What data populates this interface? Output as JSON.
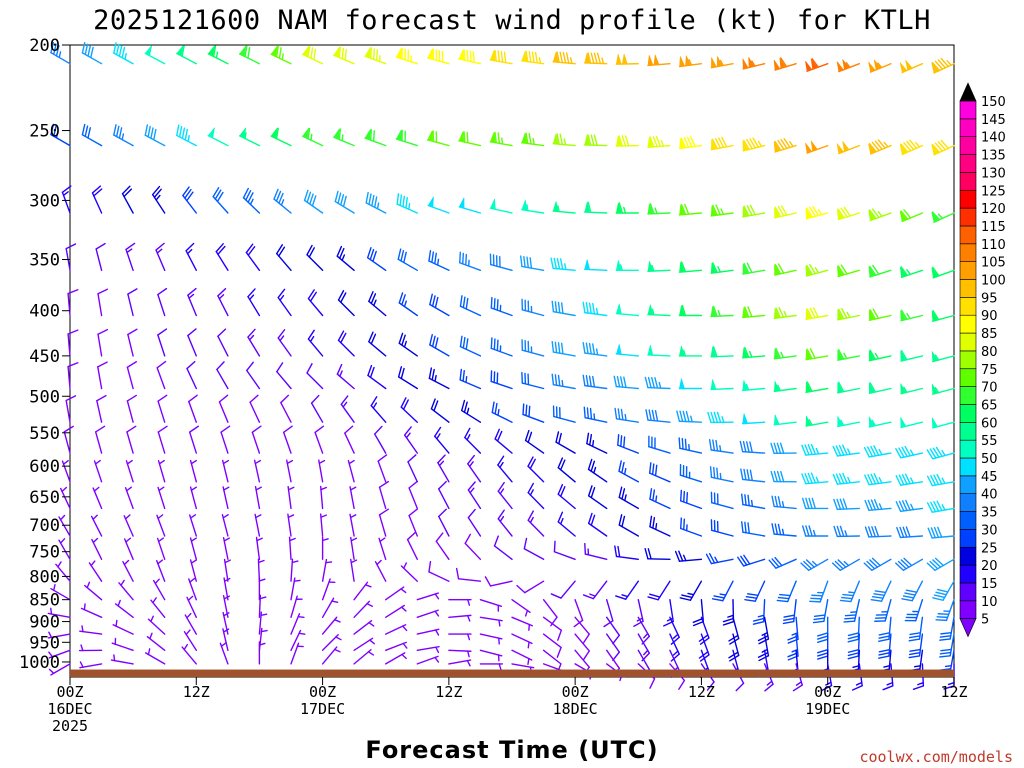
{
  "chart_data": {
    "type": "wind-barb-time-height",
    "title": "2025121600 NAM forecast wind profile (kt) for KTLH",
    "xlabel": "Forecast Time (UTC)",
    "credit": "coolwx.com/models",
    "y_axis": {
      "units": "hPa",
      "inverted": true,
      "range": [
        1040,
        200
      ],
      "ticks": [
        "200",
        "250",
        "300",
        "350",
        "400",
        "450",
        "500",
        "550",
        "600",
        "650",
        "700",
        "750",
        "800",
        "850",
        "900",
        "950",
        "1000"
      ]
    },
    "x_axis": {
      "units": "forecast hour",
      "range": [
        0,
        84
      ],
      "ticks": [
        {
          "hour": 0,
          "line1": "00Z",
          "line2": "16DEC",
          "line3": "2025"
        },
        {
          "hour": 12,
          "line1": "12Z",
          "line2": "",
          "line3": ""
        },
        {
          "hour": 24,
          "line1": "00Z",
          "line2": "17DEC",
          "line3": ""
        },
        {
          "hour": 36,
          "line1": "12Z",
          "line2": "",
          "line3": ""
        },
        {
          "hour": 48,
          "line1": "00Z",
          "line2": "18DEC",
          "line3": ""
        },
        {
          "hour": 60,
          "line1": "12Z",
          "line2": "",
          "line3": ""
        },
        {
          "hour": 72,
          "line1": "00Z",
          "line2": "19DEC",
          "line3": ""
        },
        {
          "hour": 84,
          "line1": "12Z",
          "line2": "",
          "line3": ""
        }
      ]
    },
    "colorbar": {
      "units": "kt",
      "levels": [
        5,
        10,
        15,
        20,
        25,
        30,
        35,
        40,
        45,
        50,
        55,
        60,
        65,
        70,
        75,
        80,
        85,
        90,
        95,
        100,
        105,
        110,
        115,
        120,
        125,
        130,
        135,
        140,
        145,
        150
      ],
      "colors": [
        "#8000ff",
        "#6000ff",
        "#2000ff",
        "#0000e0",
        "#0040ff",
        "#0060ff",
        "#1080ff",
        "#10a0ff",
        "#00e0ff",
        "#00ffc0",
        "#00ff90",
        "#00ff60",
        "#30ff30",
        "#60ff00",
        "#a0ff00",
        "#e0ff00",
        "#ffff00",
        "#ffe000",
        "#ffc000",
        "#ffa000",
        "#ff8000",
        "#ff6000",
        "#ff3000",
        "#ff0000",
        "#ff0060",
        "#ff0080",
        "#ff00a0",
        "#ff00c0",
        "#ff00e0",
        "#ff00ff"
      ]
    },
    "surface_pressure_hPa": 1020,
    "barb_levels_hPa": [
      210,
      260,
      310,
      360,
      405,
      450,
      490,
      535,
      580,
      625,
      670,
      720,
      765,
      810,
      850,
      890,
      930,
      970,
      1005
    ],
    "barb_times_h": [
      0,
      3,
      6,
      9,
      12,
      15,
      18,
      21,
      24,
      27,
      30,
      33,
      36,
      39,
      42,
      45,
      48,
      51,
      54,
      57,
      60,
      63,
      66,
      69,
      72,
      75,
      78,
      81,
      84
    ],
    "wind_keyframes": [
      {
        "p": 210,
        "t": [
          0,
          24,
          48,
          72,
          84
        ],
        "dir": [
          300,
          295,
          275,
          250,
          245
        ],
        "spd": [
          35,
          80,
          95,
          110,
          95
        ]
      },
      {
        "p": 260,
        "t": [
          0,
          24,
          48,
          72,
          84
        ],
        "dir": [
          300,
          295,
          275,
          250,
          245
        ],
        "spd": [
          25,
          65,
          75,
          100,
          90
        ]
      },
      {
        "p": 310,
        "t": [
          0,
          24,
          48,
          72,
          84
        ],
        "dir": [
          340,
          305,
          275,
          255,
          245
        ],
        "spd": [
          15,
          40,
          55,
          85,
          65
        ]
      },
      {
        "p": 360,
        "t": [
          0,
          24,
          48,
          72,
          84
        ],
        "dir": [
          350,
          315,
          275,
          255,
          250
        ],
        "spd": [
          10,
          22,
          45,
          75,
          60
        ]
      },
      {
        "p": 405,
        "t": [
          0,
          24,
          48,
          72,
          84
        ],
        "dir": [
          355,
          320,
          280,
          260,
          255
        ],
        "spd": [
          8,
          18,
          40,
          80,
          60
        ]
      },
      {
        "p": 450,
        "t": [
          0,
          24,
          48,
          72,
          84
        ],
        "dir": [
          355,
          320,
          280,
          260,
          255
        ],
        "spd": [
          8,
          15,
          40,
          70,
          55
        ]
      },
      {
        "p": 490,
        "t": [
          0,
          24,
          48,
          72,
          84
        ],
        "dir": [
          355,
          315,
          280,
          260,
          255
        ],
        "spd": [
          8,
          12,
          35,
          60,
          55
        ]
      },
      {
        "p": 535,
        "t": [
          0,
          24,
          48,
          72,
          84
        ],
        "dir": [
          350,
          330,
          285,
          260,
          255
        ],
        "spd": [
          8,
          10,
          30,
          55,
          50
        ]
      },
      {
        "p": 580,
        "t": [
          0,
          24,
          48,
          72,
          84
        ],
        "dir": [
          345,
          340,
          300,
          265,
          255
        ],
        "spd": [
          8,
          8,
          22,
          45,
          45
        ]
      },
      {
        "p": 625,
        "t": [
          0,
          24,
          48,
          72,
          84
        ],
        "dir": [
          340,
          350,
          310,
          265,
          260
        ],
        "spd": [
          5,
          5,
          20,
          45,
          45
        ]
      },
      {
        "p": 670,
        "t": [
          0,
          24,
          48,
          72,
          84
        ],
        "dir": [
          335,
          355,
          310,
          270,
          260
        ],
        "spd": [
          5,
          5,
          18,
          40,
          45
        ]
      },
      {
        "p": 720,
        "t": [
          0,
          24,
          48,
          72,
          84
        ],
        "dir": [
          330,
          355,
          310,
          270,
          265
        ],
        "spd": [
          5,
          5,
          15,
          35,
          40
        ]
      },
      {
        "p": 765,
        "t": [
          0,
          24,
          48,
          72,
          84
        ],
        "dir": [
          330,
          0,
          290,
          240,
          240
        ],
        "spd": [
          5,
          5,
          12,
          35,
          40
        ]
      },
      {
        "p": 810,
        "t": [
          0,
          24,
          48,
          72,
          84
        ],
        "dir": [
          320,
          10,
          220,
          200,
          210
        ],
        "spd": [
          5,
          5,
          10,
          35,
          40
        ]
      },
      {
        "p": 850,
        "t": [
          0,
          24,
          48,
          72,
          84
        ],
        "dir": [
          300,
          20,
          160,
          190,
          200
        ],
        "spd": [
          6,
          5,
          8,
          32,
          35
        ]
      },
      {
        "p": 890,
        "t": [
          0,
          24,
          48,
          72,
          84
        ],
        "dir": [
          280,
          30,
          140,
          180,
          190
        ],
        "spd": [
          6,
          5,
          8,
          30,
          32
        ]
      },
      {
        "p": 930,
        "t": [
          0,
          24,
          48,
          72,
          84
        ],
        "dir": [
          260,
          40,
          140,
          180,
          190
        ],
        "spd": [
          6,
          5,
          8,
          28,
          30
        ]
      },
      {
        "p": 970,
        "t": [
          0,
          24,
          48,
          72,
          84
        ],
        "dir": [
          250,
          45,
          140,
          180,
          190
        ],
        "spd": [
          5,
          5,
          8,
          22,
          25
        ]
      },
      {
        "p": 1005,
        "t": [
          0,
          24,
          48,
          72,
          84
        ],
        "dir": [
          240,
          40,
          120,
          170,
          180
        ],
        "spd": [
          5,
          5,
          6,
          15,
          15
        ]
      }
    ]
  }
}
